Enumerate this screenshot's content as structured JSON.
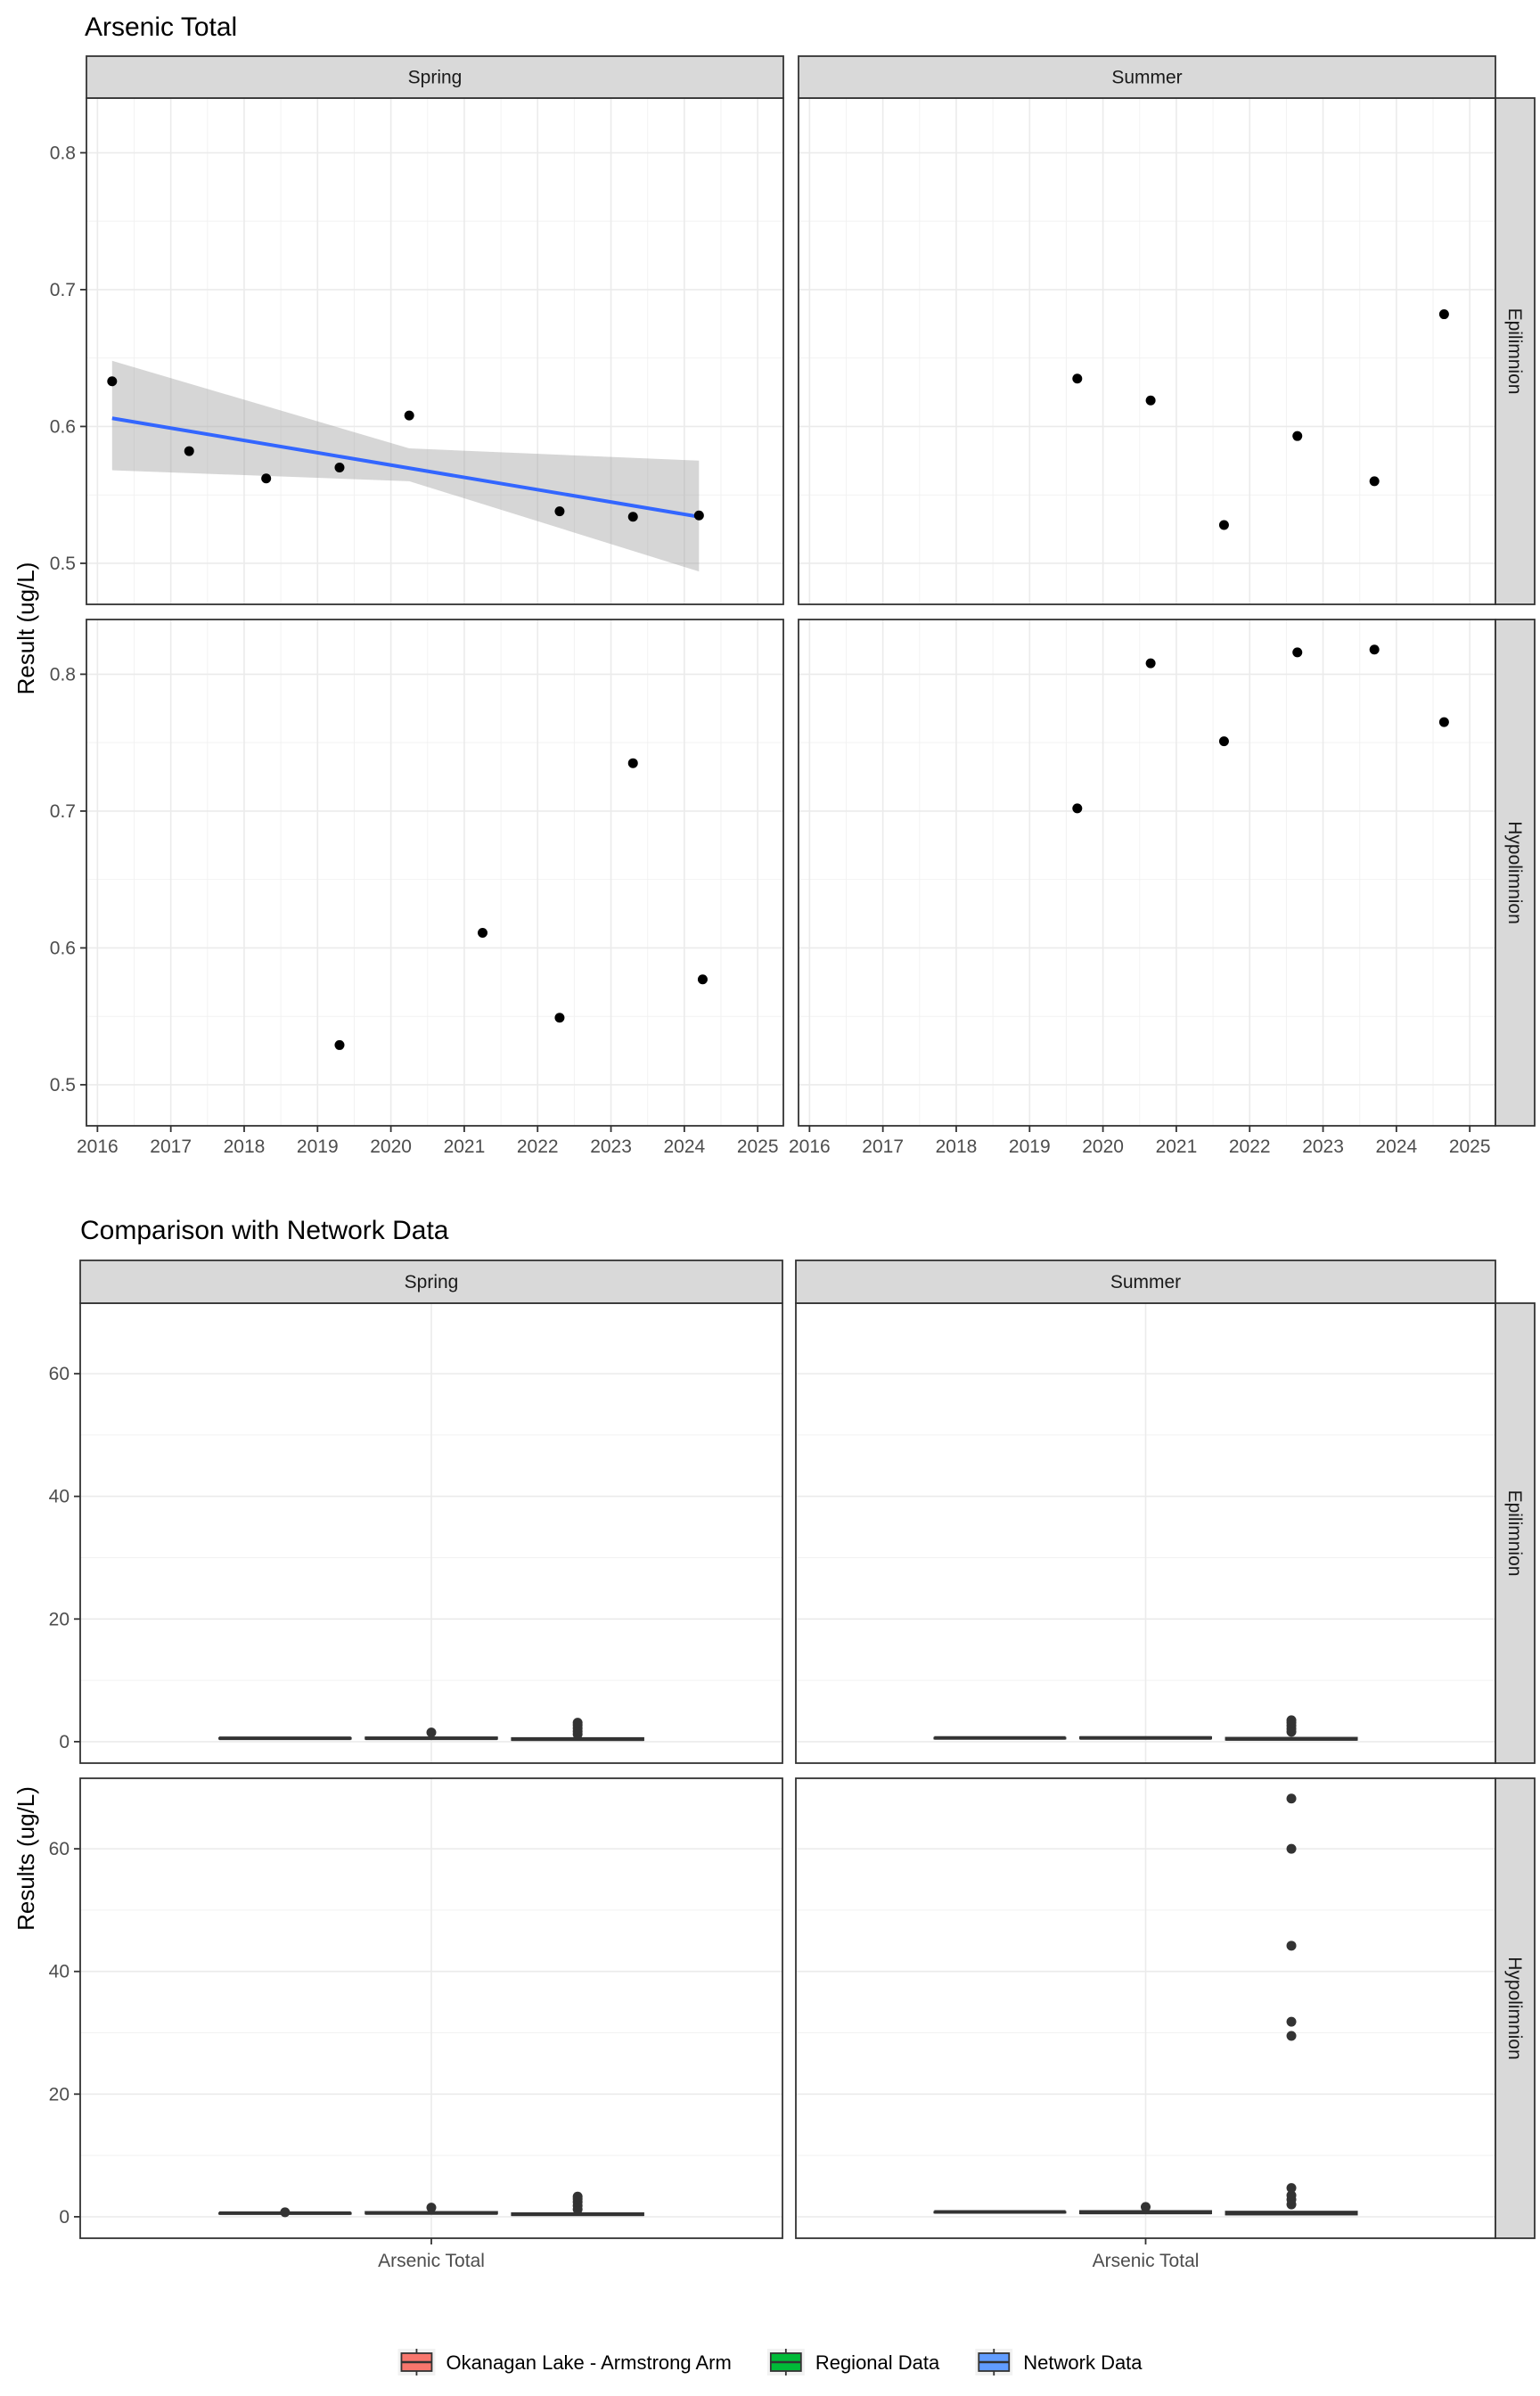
{
  "chart_data": [
    {
      "type": "scatter",
      "title": "Arsenic Total",
      "ylabel": "Result (ug/L)",
      "xlabel": "",
      "facet_cols": [
        "Spring",
        "Summer"
      ],
      "facet_rows": [
        "Epilimnion",
        "Hypolimnion"
      ],
      "xlim": [
        2015.85,
        2025.35
      ],
      "x_ticks": [
        2016,
        2017,
        2018,
        2019,
        2020,
        2021,
        2022,
        2023,
        2024,
        2025
      ],
      "x_tick_labels": [
        "2016",
        "2017",
        "2018",
        "2019",
        "2020",
        "2021",
        "2022",
        "2023",
        "2024",
        "2025"
      ],
      "ylim": [
        0.47,
        0.84
      ],
      "y_ticks": [
        0.5,
        0.6,
        0.7,
        0.8
      ],
      "y_tick_labels": [
        "0.5",
        "0.6",
        "0.7",
        "0.8"
      ],
      "grid": true,
      "panels": [
        {
          "col": "Spring",
          "row": "Epilimnion",
          "points": [
            [
              2016.2,
              0.633
            ],
            [
              2017.25,
              0.582
            ],
            [
              2018.3,
              0.562
            ],
            [
              2019.3,
              0.57
            ],
            [
              2020.25,
              0.608
            ],
            [
              2022.3,
              0.538
            ],
            [
              2023.3,
              0.534
            ],
            [
              2024.2,
              0.535
            ]
          ],
          "trend": {
            "x": [
              2016.2,
              2024.2
            ],
            "y": [
              0.606,
              0.534
            ]
          },
          "ci_band": {
            "x": [
              2016.2,
              2020.25,
              2024.2
            ],
            "lower": [
              0.568,
              0.56,
              0.494
            ],
            "upper": [
              0.648,
              0.584,
              0.575
            ]
          }
        },
        {
          "col": "Summer",
          "row": "Epilimnion",
          "points": [
            [
              2019.65,
              0.635
            ],
            [
              2020.65,
              0.619
            ],
            [
              2021.65,
              0.528
            ],
            [
              2022.65,
              0.593
            ],
            [
              2023.7,
              0.56
            ],
            [
              2024.65,
              0.682
            ]
          ]
        },
        {
          "col": "Spring",
          "row": "Hypolimnion",
          "points": [
            [
              2019.3,
              0.529
            ],
            [
              2021.25,
              0.611
            ],
            [
              2022.3,
              0.549
            ],
            [
              2023.3,
              0.735
            ],
            [
              2024.25,
              0.577
            ]
          ]
        },
        {
          "col": "Summer",
          "row": "Hypolimnion",
          "points": [
            [
              2019.65,
              0.702
            ],
            [
              2020.65,
              0.808
            ],
            [
              2021.65,
              0.751
            ],
            [
              2022.65,
              0.816
            ],
            [
              2023.7,
              0.818
            ],
            [
              2024.65,
              0.765
            ]
          ]
        }
      ]
    },
    {
      "type": "box",
      "title": "Comparison with Network Data",
      "ylabel": "Results (ug/L)",
      "category": "Arsenic Total",
      "facet_cols": [
        "Spring",
        "Summer"
      ],
      "facet_rows": [
        "Epilimnion",
        "Hypolimnion"
      ],
      "ylim": [
        -3.5,
        71.5
      ],
      "y_ticks": [
        0,
        20,
        40,
        60
      ],
      "y_tick_labels": [
        "0",
        "20",
        "40",
        "60"
      ],
      "grid": true,
      "legend": {
        "position": "bottom",
        "entries": [
          {
            "label": "Okanagan Lake - Armstrong Arm",
            "color": "#F8766D"
          },
          {
            "label": "Regional Data",
            "color": "#00BA38"
          },
          {
            "label": "Network Data",
            "color": "#619CFF"
          }
        ]
      },
      "panels": [
        {
          "col": "Spring",
          "row": "Epilimnion",
          "boxes": [
            {
              "group": "Okanagan Lake - Armstrong Arm",
              "q1": 0.53,
              "median": 0.56,
              "q3": 0.61,
              "outliers": []
            },
            {
              "group": "Regional Data",
              "q1": 0.45,
              "median": 0.55,
              "q3": 0.7,
              "outliers": [
                1.5
              ]
            },
            {
              "group": "Network Data",
              "q1": 0.25,
              "median": 0.4,
              "q3": 0.6,
              "outliers": [
                1.2,
                1.7,
                2.2,
                2.7,
                3.1
              ]
            }
          ]
        },
        {
          "col": "Summer",
          "row": "Epilimnion",
          "boxes": [
            {
              "group": "Okanagan Lake - Armstrong Arm",
              "q1": 0.55,
              "median": 0.6,
              "q3": 0.64,
              "outliers": []
            },
            {
              "group": "Regional Data",
              "q1": 0.5,
              "median": 0.6,
              "q3": 0.75,
              "outliers": []
            },
            {
              "group": "Network Data",
              "q1": 0.3,
              "median": 0.45,
              "q3": 0.65,
              "outliers": [
                1.6,
                2.1,
                2.6,
                3.1,
                3.5
              ]
            }
          ]
        },
        {
          "col": "Spring",
          "row": "Hypolimnion",
          "boxes": [
            {
              "group": "Okanagan Lake - Armstrong Arm",
              "q1": 0.55,
              "median": 0.58,
              "q3": 0.62,
              "outliers": [
                0.74
              ]
            },
            {
              "group": "Regional Data",
              "q1": 0.5,
              "median": 0.6,
              "q3": 0.8,
              "outliers": [
                1.5
              ]
            },
            {
              "group": "Network Data",
              "q1": 0.25,
              "median": 0.4,
              "q3": 0.6,
              "outliers": [
                1.2,
                1.8,
                2.4,
                2.9,
                3.3
              ]
            }
          ]
        },
        {
          "col": "Summer",
          "row": "Hypolimnion",
          "boxes": [
            {
              "group": "Okanagan Lake - Armstrong Arm",
              "q1": 0.72,
              "median": 0.78,
              "q3": 0.81,
              "outliers": []
            },
            {
              "group": "Regional Data",
              "q1": 0.55,
              "median": 0.7,
              "q3": 0.95,
              "outliers": [
                1.6
              ]
            },
            {
              "group": "Network Data",
              "q1": 0.35,
              "median": 0.55,
              "q3": 0.85,
              "outliers": [
                2.0,
                2.8,
                3.5,
                4.7,
                29.5,
                31.8,
                44.2,
                60.0,
                68.2
              ]
            }
          ]
        }
      ]
    }
  ]
}
